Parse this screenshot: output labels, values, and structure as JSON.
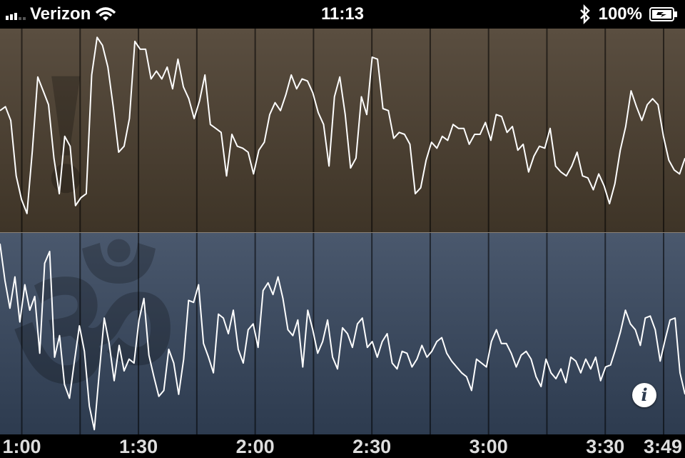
{
  "status_bar": {
    "carrier": "Verizon",
    "time": "11:13",
    "battery": "100%",
    "icons": [
      "signal-icon",
      "wifi-icon",
      "bluetooth-icon",
      "battery-icon"
    ]
  },
  "panels": [
    {
      "name": "top",
      "watermark": "!",
      "color": "#5a4e40",
      "values": [
        0.6,
        0.62,
        0.55,
        0.27,
        0.15,
        0.08,
        0.4,
        0.77,
        0.7,
        0.63,
        0.36,
        0.18,
        0.47,
        0.42,
        0.12,
        0.16,
        0.18,
        0.78,
        0.97,
        0.93,
        0.82,
        0.62,
        0.39,
        0.42,
        0.56,
        0.95,
        0.91,
        0.91,
        0.76,
        0.8,
        0.76,
        0.82,
        0.71,
        0.86,
        0.72,
        0.66,
        0.56,
        0.65,
        0.78,
        0.53,
        0.51,
        0.49,
        0.27,
        0.48,
        0.42,
        0.41,
        0.39,
        0.28,
        0.4,
        0.44,
        0.58,
        0.64,
        0.6,
        0.68,
        0.78,
        0.71,
        0.76,
        0.75,
        0.69,
        0.59,
        0.53,
        0.32,
        0.67,
        0.77,
        0.58,
        0.31,
        0.36,
        0.67,
        0.58,
        0.87,
        0.86,
        0.61,
        0.6,
        0.46,
        0.49,
        0.48,
        0.43,
        0.18,
        0.21,
        0.35,
        0.44,
        0.41,
        0.47,
        0.45,
        0.53,
        0.51,
        0.51,
        0.43,
        0.48,
        0.48,
        0.54,
        0.45,
        0.58,
        0.57,
        0.49,
        0.52,
        0.4,
        0.43,
        0.29,
        0.37,
        0.42,
        0.41,
        0.51,
        0.32,
        0.29,
        0.27,
        0.32,
        0.39,
        0.27,
        0.26,
        0.2,
        0.28,
        0.22,
        0.13,
        0.23,
        0.4,
        0.52,
        0.7,
        0.62,
        0.55,
        0.63,
        0.66,
        0.63,
        0.47,
        0.35,
        0.3,
        0.28,
        0.36
      ],
      "tip": 0.36
    },
    {
      "name": "bottom",
      "watermark": "ॐ",
      "color": "#4a586d",
      "values": [
        0.96,
        0.77,
        0.63,
        0.79,
        0.56,
        0.75,
        0.62,
        0.69,
        0.4,
        0.86,
        0.92,
        0.38,
        0.49,
        0.24,
        0.17,
        0.36,
        0.54,
        0.41,
        0.13,
        0.01,
        0.3,
        0.58,
        0.45,
        0.26,
        0.44,
        0.31,
        0.37,
        0.35,
        0.57,
        0.68,
        0.39,
        0.28,
        0.18,
        0.21,
        0.42,
        0.35,
        0.19,
        0.37,
        0.67,
        0.66,
        0.75,
        0.45,
        0.38,
        0.3,
        0.6,
        0.58,
        0.5,
        0.62,
        0.42,
        0.35,
        0.52,
        0.55,
        0.43,
        0.72,
        0.76,
        0.7,
        0.79,
        0.68,
        0.52,
        0.49,
        0.57,
        0.33,
        0.62,
        0.52,
        0.4,
        0.46,
        0.57,
        0.38,
        0.32,
        0.53,
        0.5,
        0.43,
        0.55,
        0.58,
        0.43,
        0.46,
        0.38,
        0.46,
        0.5,
        0.35,
        0.32,
        0.41,
        0.4,
        0.33,
        0.37,
        0.44,
        0.38,
        0.41,
        0.46,
        0.48,
        0.4,
        0.36,
        0.33,
        0.3,
        0.28,
        0.21,
        0.37,
        0.35,
        0.33,
        0.46,
        0.52,
        0.45,
        0.45,
        0.4,
        0.33,
        0.39,
        0.41,
        0.37,
        0.28,
        0.23,
        0.37,
        0.3,
        0.27,
        0.32,
        0.25,
        0.38,
        0.36,
        0.3,
        0.37,
        0.32,
        0.38,
        0.26,
        0.33,
        0.34,
        0.42,
        0.51,
        0.62,
        0.55,
        0.52,
        0.44,
        0.58,
        0.59,
        0.52,
        0.36,
        0.47,
        0.57,
        0.58,
        0.3,
        0.19
      ]
    }
  ],
  "time_axis": {
    "labels": [
      "1:00",
      "1:30",
      "2:00",
      "2:30",
      "3:00",
      "3:30",
      "3:49"
    ],
    "minutes": [
      60,
      90,
      120,
      150,
      180,
      210,
      229
    ]
  },
  "info_button": {
    "glyph": "i",
    "icon": "info-icon"
  }
}
